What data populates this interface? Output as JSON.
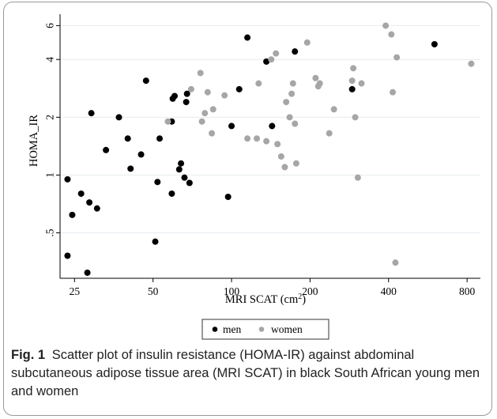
{
  "chart_data": {
    "type": "scatter",
    "title": "",
    "xlabel": "MRI SCAT (cm²)",
    "ylabel": "HOMA_IR",
    "x_scale": "log",
    "y_scale": "log",
    "x_ticks": [
      {
        "value": 25,
        "label": "25"
      },
      {
        "value": 50,
        "label": "50"
      },
      {
        "value": 100,
        "label": "100"
      },
      {
        "value": 200,
        "label": "200"
      },
      {
        "value": 400,
        "label": "400"
      },
      {
        "value": 800,
        "label": "800"
      }
    ],
    "y_ticks": [
      {
        "value": 0.5,
        "label": ".5"
      },
      {
        "value": 1,
        "label": "1"
      },
      {
        "value": 2,
        "label": "2"
      },
      {
        "value": 4,
        "label": "4"
      },
      {
        "value": 6,
        "label": "6"
      }
    ],
    "xlim": [
      22,
      900
    ],
    "ylim": [
      0.29,
      6.5
    ],
    "grid": true,
    "legend_position": "bottom",
    "series": [
      {
        "name": "men",
        "color": "#000000",
        "points": [
          [
            23.5,
            0.95
          ],
          [
            23.5,
            0.38
          ],
          [
            24.5,
            0.62
          ],
          [
            26.5,
            0.8
          ],
          [
            28,
            0.31
          ],
          [
            28.5,
            0.72
          ],
          [
            29,
            2.1
          ],
          [
            30.5,
            0.67
          ],
          [
            33,
            1.35
          ],
          [
            37,
            2.0
          ],
          [
            40,
            1.55
          ],
          [
            41,
            1.08
          ],
          [
            45,
            1.28
          ],
          [
            47,
            3.1
          ],
          [
            51,
            0.45
          ],
          [
            52,
            0.92
          ],
          [
            53,
            1.55
          ],
          [
            59,
            0.8
          ],
          [
            59,
            1.9
          ],
          [
            59.5,
            2.5
          ],
          [
            60.5,
            2.58
          ],
          [
            63,
            1.07
          ],
          [
            64,
            1.15
          ],
          [
            66,
            0.97
          ],
          [
            67,
            2.4
          ],
          [
            67.5,
            2.65
          ],
          [
            69,
            0.91
          ],
          [
            97,
            0.77
          ],
          [
            100,
            1.8
          ],
          [
            107,
            2.8
          ],
          [
            115,
            5.2
          ],
          [
            136,
            3.9
          ],
          [
            143,
            1.8
          ],
          [
            175,
            4.4
          ],
          [
            290,
            2.8
          ],
          [
            600,
            4.8
          ]
        ]
      },
      {
        "name": "women",
        "color": "#a6a6a6",
        "points": [
          [
            57,
            1.9
          ],
          [
            70,
            2.8
          ],
          [
            76,
            3.4
          ],
          [
            77,
            1.9
          ],
          [
            79,
            2.1
          ],
          [
            81,
            2.7
          ],
          [
            84,
            1.65
          ],
          [
            85,
            2.2
          ],
          [
            94,
            2.6
          ],
          [
            115,
            1.55
          ],
          [
            125,
            1.55
          ],
          [
            127,
            3.0
          ],
          [
            136,
            1.5
          ],
          [
            142,
            4.0
          ],
          [
            148,
            4.3
          ],
          [
            150,
            1.45
          ],
          [
            155,
            1.25
          ],
          [
            160,
            1.1
          ],
          [
            162,
            2.4
          ],
          [
            167,
            2.0
          ],
          [
            170,
            2.65
          ],
          [
            172,
            3.0
          ],
          [
            175,
            1.85
          ],
          [
            177,
            1.15
          ],
          [
            195,
            4.9
          ],
          [
            210,
            3.2
          ],
          [
            215,
            2.9
          ],
          [
            218,
            3.0
          ],
          [
            237,
            1.65
          ],
          [
            247,
            2.2
          ],
          [
            290,
            3.1
          ],
          [
            293,
            3.6
          ],
          [
            298,
            2.0
          ],
          [
            305,
            0.97
          ],
          [
            315,
            3.0
          ],
          [
            390,
            6.0
          ],
          [
            410,
            5.4
          ],
          [
            415,
            2.7
          ],
          [
            425,
            0.35
          ],
          [
            430,
            4.1
          ],
          [
            830,
            3.8
          ]
        ]
      }
    ]
  },
  "caption": {
    "label": "Fig. 1",
    "text": "Scatter plot of insulin resistance (HOMA-IR) against abdominal subcutaneous adipose tissue area (MRI SCAT) in black South African young men and women"
  }
}
